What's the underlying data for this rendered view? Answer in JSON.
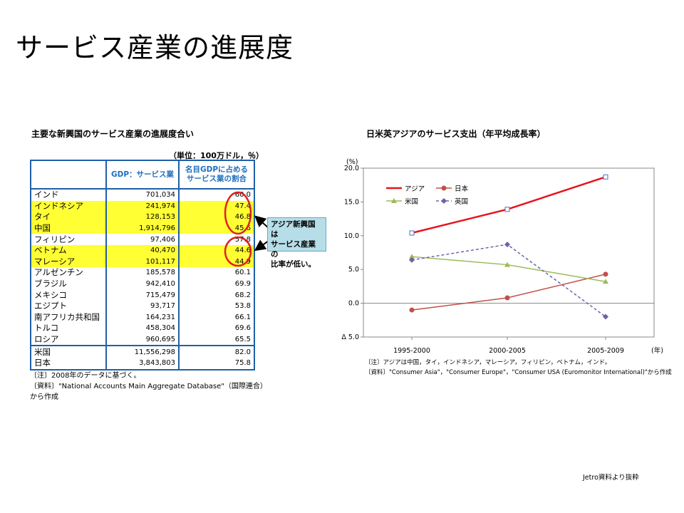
{
  "slide": {
    "title": "サービス産業の進展度",
    "source_note": "Jetro資料より抜粋"
  },
  "table": {
    "title": "主要な新興国のサービス産業の進展度合い",
    "unit": "（単位：100万ドル，％）",
    "headers": {
      "country": "",
      "gdp": "GDP：サービス業",
      "share": "名目GDPに占める\nサービス業の割合"
    },
    "rows": [
      {
        "country": "インド",
        "gdp": "701,034",
        "share": "60.0"
      },
      {
        "country": "インドネシア",
        "gdp": "241,974",
        "share": "47.4"
      },
      {
        "country": "タイ",
        "gdp": "128,153",
        "share": "46.8"
      },
      {
        "country": "中国",
        "gdp": "1,914,796",
        "share": "45.6"
      },
      {
        "country": "フィリピン",
        "gdp": "97,406",
        "share": "57.8"
      },
      {
        "country": "ベトナム",
        "gdp": "40,470",
        "share": "44.6"
      },
      {
        "country": "マレーシア",
        "gdp": "101,117",
        "share": "44.9"
      },
      {
        "country": "アルゼンチン",
        "gdp": "185,578",
        "share": "60.1"
      },
      {
        "country": "ブラジル",
        "gdp": "942,410",
        "share": "69.9"
      },
      {
        "country": "メキシコ",
        "gdp": "715,479",
        "share": "68.2"
      },
      {
        "country": "エジプト",
        "gdp": "93,717",
        "share": "53.8"
      },
      {
        "country": "南アフリカ共和国",
        "gdp": "164,231",
        "share": "66.1"
      },
      {
        "country": "トルコ",
        "gdp": "458,304",
        "share": "69.6"
      },
      {
        "country": "ロシア",
        "gdp": "960,695",
        "share": "65.5"
      },
      {
        "country": "米国",
        "gdp": "11,556,298",
        "share": "82.0"
      },
      {
        "country": "日本",
        "gdp": "3,843,803",
        "share": "75.8"
      }
    ],
    "note": "〔注〕2008年のデータに基づく。",
    "source_line1": "〔資料〕\"National Accounts Main Aggregate Database\"（国際連合）",
    "source_line2": "から作成",
    "callout_line1": "アジア新興国は",
    "callout_line2": "サービス産業の",
    "callout_line3": "比率が低い。",
    "highlight_color": "#ffff33",
    "border_color": "#1f5fa8",
    "circle_color": "#e02020"
  },
  "chart_data": {
    "type": "line",
    "title": "日米英アジアのサービス支出（年平均成長率）",
    "ylabel": "(%)",
    "xlabel": "(年)",
    "categories": [
      "1995-2000",
      "2000-2005",
      "2005-2009"
    ],
    "ylim": [
      -5,
      20
    ],
    "yticks": [
      "20.0",
      "15.0",
      "10.0",
      "5.0",
      "0.0",
      "Δ 5.0"
    ],
    "ytick_values": [
      20,
      15,
      10,
      5,
      0,
      -5
    ],
    "grid": false,
    "legend_position": "top-left",
    "series": [
      {
        "name": "アジア",
        "values": [
          10.4,
          13.9,
          18.7
        ],
        "color": "#e8141c",
        "style": "solid-thick",
        "marker": "square"
      },
      {
        "name": "日本",
        "values": [
          -1.0,
          0.8,
          4.3
        ],
        "color": "#c0504d",
        "style": "solid",
        "marker": "circle"
      },
      {
        "name": "米国",
        "values": [
          6.9,
          5.7,
          3.2
        ],
        "color": "#9bbb59",
        "style": "solid",
        "marker": "triangle"
      },
      {
        "name": "英国",
        "values": [
          6.4,
          8.7,
          -2.0
        ],
        "color": "#7060a8",
        "style": "dashed",
        "marker": "diamond"
      }
    ],
    "note1": "〔注〕アジアは中国，タイ，インドネシア，マレーシア，フィリピン，ベトナム，インド。",
    "note2": "〔資料〕\"Consumer Asia\"，\"Consumer Europe\"，\"Consumer USA (Euromonitor International)\"から作成"
  }
}
